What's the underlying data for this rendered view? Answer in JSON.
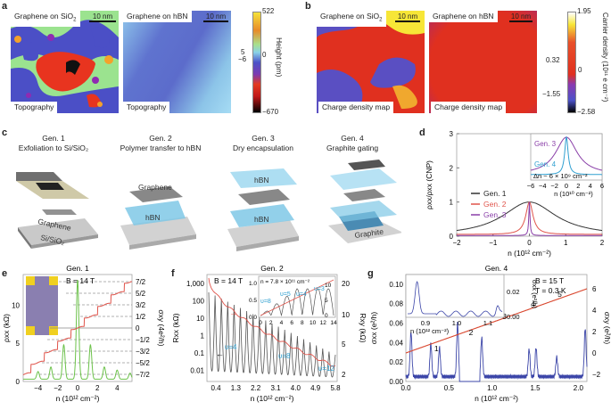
{
  "panels": {
    "a": {
      "label": "a",
      "left_image": {
        "title": "Graphene on SiO",
        "title_sub": "2",
        "scale": "10 nm",
        "caption": "Topography"
      },
      "right_image": {
        "title": "Graphene on hBN",
        "scale": "10 nm",
        "caption": "Topography"
      },
      "colorbar": {
        "label": "Height (pm)",
        "ticks": [
          "522",
          "0",
          "−670"
        ],
        "side_ticks": [
          "5",
          "−6"
        ]
      }
    },
    "b": {
      "label": "b",
      "left_image": {
        "title": "Graphene on SiO",
        "title_sub": "2",
        "scale": "10 nm",
        "caption": "Charge density map"
      },
      "right_image": {
        "title": "Graphene on hBN",
        "scale": "10 nm",
        "caption": "Charge density map"
      },
      "colorbar": {
        "label": "Carrier density (10¹¹ e cm⁻²)",
        "ticks": [
          "1.95",
          "0.32",
          "0",
          "−1.55",
          "−2.58"
        ]
      }
    },
    "c": {
      "label": "c",
      "generations": [
        {
          "title": "Gen. 1",
          "subtitle": "Exfoliation to Si/SiO₂",
          "labels": [
            "Graphene",
            "Si/SiO₂"
          ]
        },
        {
          "title": "Gen. 2",
          "subtitle": "Polymer transfer to hBN",
          "labels": [
            "Graphene",
            "hBN"
          ]
        },
        {
          "title": "Gen. 3",
          "subtitle": "Dry encapsulation",
          "labels": [
            "hBN",
            "hBN"
          ]
        },
        {
          "title": "Gen. 4",
          "subtitle": "Graphite gating",
          "labels": [
            "Graphite"
          ]
        }
      ]
    },
    "e": {
      "label": "e",
      "title": "Gen. 1",
      "annotation": "B = 14 T"
    },
    "f": {
      "label": "f",
      "title": "Gen. 2",
      "annotation": "B = 14 T",
      "inset_annotation": "n = 7.8 × 10¹¹ cm⁻²"
    },
    "g": {
      "label": "g",
      "title": "Gen. 4",
      "annotation_B": "B = 15 T",
      "annotation_T": "T = 0.3 K"
    }
  },
  "chart_data": [
    {
      "id": "d",
      "type": "line",
      "title": "",
      "xlabel": "n (10¹² cm⁻²)",
      "ylabel": "ρxx/ρxx (CNP)",
      "xlim": [
        -2,
        2
      ],
      "ylim": [
        0,
        3
      ],
      "xticks": [
        "−2",
        "−1",
        "0",
        "1",
        "2"
      ],
      "yticks": [
        "0",
        "1",
        "2",
        "3"
      ],
      "legend": "center-left",
      "series": [
        {
          "name": "Gen. 1",
          "color": "#333333",
          "model": "lorentzian",
          "width": 0.9,
          "floor": 0.0
        },
        {
          "name": "Gen. 2",
          "color": "#e0544b",
          "model": "lorentzian",
          "width": 0.12,
          "floor": 0.05
        },
        {
          "name": "Gen. 3",
          "color": "#8a3fa8",
          "model": "lorentzian",
          "width": 0.02,
          "floor": 0.02
        }
      ],
      "inset": {
        "xlabel": "n (10¹⁰ cm⁻²)",
        "xlim": [
          -6,
          6
        ],
        "xticks": [
          "−6",
          "−4",
          "−2",
          "0",
          "2",
          "4",
          "6"
        ],
        "annotation": "Δn ~ 6 × 10⁹ cm⁻²",
        "series": [
          {
            "name": "Gen. 3",
            "color": "#8a3fa8",
            "width": 2.2
          },
          {
            "name": "Gen. 4",
            "color": "#2f9fd0",
            "width": 0.35
          }
        ]
      }
    },
    {
      "id": "e",
      "type": "line",
      "title": "Gen. 1",
      "xlabel": "n (10¹² cm⁻²)",
      "ylabel": "ρxx (kΩ)",
      "ylabel_right": "σxy (4e²/h)",
      "xlim": [
        -5.5,
        5.5
      ],
      "ylim": [
        0,
        14
      ],
      "xticks": [
        "−4",
        "−2",
        "0",
        "2",
        "4"
      ],
      "yticks": [
        "0",
        "5",
        "10"
      ],
      "right_ticks": [
        "7/2",
        "5/2",
        "3/2",
        "1/2",
        "0",
        "−1/2",
        "−3/2",
        "−5/2",
        "−7/2"
      ],
      "series": [
        {
          "name": "ρxx",
          "color": "#6cc24a"
        },
        {
          "name": "σxy",
          "color": "#e0544b"
        }
      ]
    },
    {
      "id": "f",
      "type": "line",
      "title": "Gen. 2",
      "xlabel": "n (10¹² cm⁻²)",
      "ylabel": "Rxx (kΩ)",
      "ylabel_right": "Rxy (kΩ)",
      "xticks": [
        "0.4",
        "1.3",
        "2.2",
        "3.1",
        "4.0",
        "4.9",
        "5.8"
      ],
      "yticks": [
        "1,000",
        "100",
        "10",
        "1",
        "0.1",
        "0.01"
      ],
      "right_ticks": [
        "20",
        "10",
        "5",
        "2"
      ],
      "annotations": [
        "υ=4",
        "υ=8",
        "υ=12"
      ],
      "inset": {
        "xticks": [
          "0",
          "2",
          "4",
          "6",
          "8",
          "10",
          "12",
          "14"
        ],
        "yticks": [
          "0.0",
          "0.5",
          "1.0"
        ],
        "right_ticks": [
          "0",
          "5",
          "10"
        ],
        "annotations": [
          "υ=8",
          "υ=5",
          "υ=4",
          "υ=3"
        ]
      },
      "series": [
        {
          "name": "Rxx",
          "color": "#555555"
        },
        {
          "name": "Rxy",
          "color": "#e0544b"
        }
      ]
    },
    {
      "id": "g",
      "type": "line",
      "title": "Gen. 4",
      "xlabel": "n (10¹² cm⁻²)",
      "ylabel": "σxx (e²/h)",
      "ylabel_right": "σxy (e²/h)",
      "xlim": [
        0,
        2.1
      ],
      "ylim": [
        0,
        0.11
      ],
      "xticks": [
        "0.0",
        "0.5",
        "1.0",
        "1.5",
        "2.0"
      ],
      "yticks": [
        "0.00",
        "0.02",
        "0.04",
        "0.06",
        "0.08",
        "0.10"
      ],
      "right_ticks": [
        "−2",
        "0",
        "2",
        "4",
        "6"
      ],
      "plateau_labels": [
        "1",
        "2",
        "3",
        "4",
        "5"
      ],
      "inset": {
        "xticks": [
          "0.9",
          "1.0",
          "1.1"
        ],
        "yticks": [
          "0.00",
          "0.02"
        ],
        "xlabel": "n (10¹² cm⁻²)",
        "ylabel": "σxx (e²/h)"
      },
      "series": [
        {
          "name": "σxx",
          "color": "#3b45a8"
        },
        {
          "name": "σxy",
          "color": "#d9452c"
        }
      ]
    }
  ]
}
